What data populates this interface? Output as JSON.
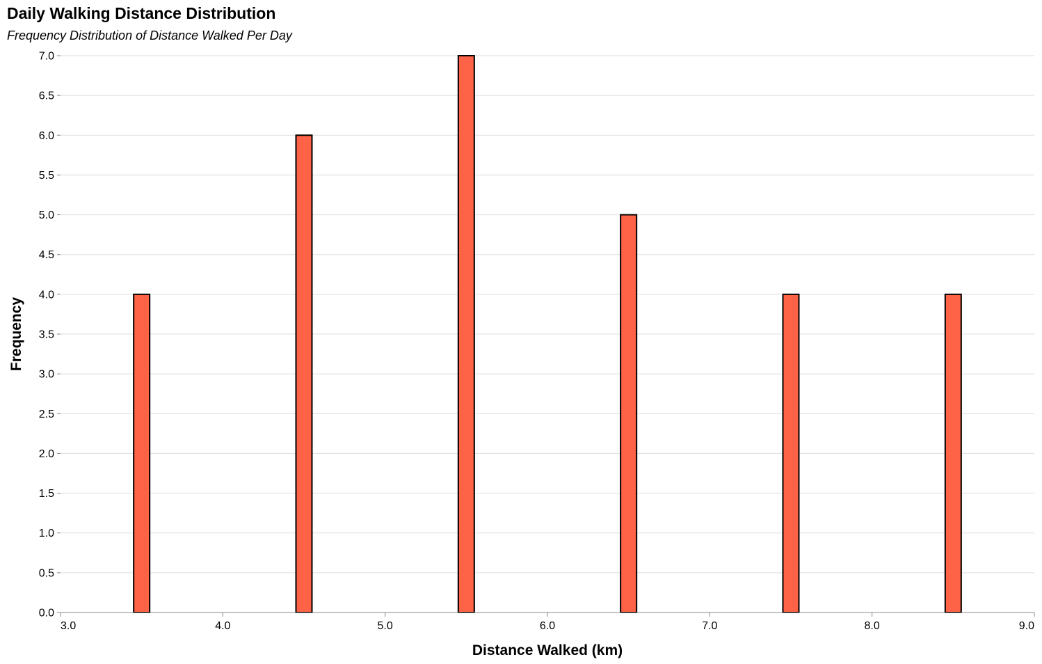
{
  "chart_data": {
    "type": "bar",
    "title": "Daily Walking Distance Distribution",
    "subtitle": "Frequency Distribution of Distance Walked Per Day",
    "xlabel": "Distance Walked (km)",
    "ylabel": "Frequency",
    "x": [
      3.5,
      4.5,
      5.5,
      6.5,
      7.5,
      8.5
    ],
    "values": [
      4,
      6,
      7,
      5,
      4,
      4
    ],
    "xlim": [
      3.0,
      9.0
    ],
    "ylim": [
      0,
      7.0
    ],
    "xticks": [
      "3.0",
      "4.0",
      "5.0",
      "6.0",
      "7.0",
      "8.0",
      "9.0"
    ],
    "yticks": [
      "0.0",
      "0.5",
      "1.0",
      "1.5",
      "2.0",
      "2.5",
      "3.0",
      "3.5",
      "4.0",
      "4.5",
      "5.0",
      "5.5",
      "6.0",
      "6.5",
      "7.0"
    ],
    "grid": true,
    "bar_color": "#ff6347"
  }
}
